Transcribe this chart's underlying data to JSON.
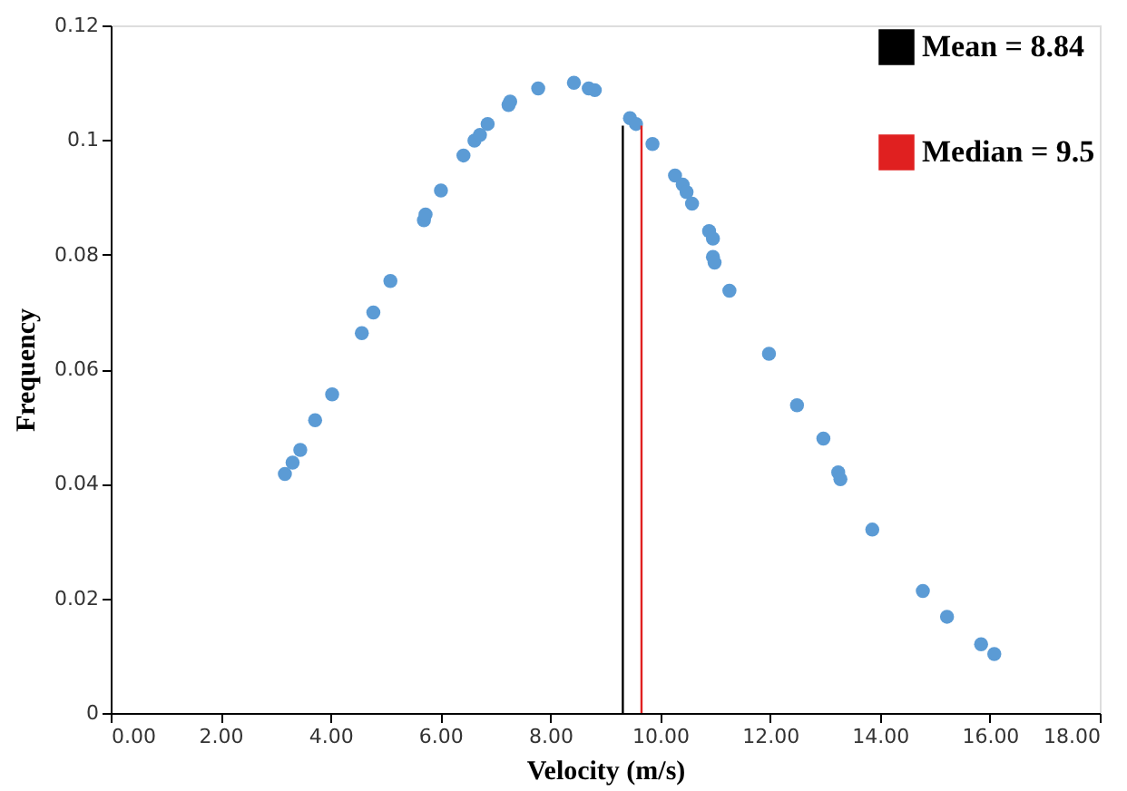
{
  "chart_data": {
    "type": "scatter",
    "xlabel": "Velocity (m/s)",
    "ylabel": "Frequency",
    "xlim": [
      0,
      18
    ],
    "ylim": [
      0,
      0.12
    ],
    "xticks": [
      {
        "value": 0,
        "label": "0.00"
      },
      {
        "value": 2,
        "label": "2.00"
      },
      {
        "value": 4,
        "label": "4.00"
      },
      {
        "value": 6,
        "label": "6.00"
      },
      {
        "value": 8,
        "label": "8.00"
      },
      {
        "value": 10,
        "label": "10.00"
      },
      {
        "value": 12,
        "label": "12.00"
      },
      {
        "value": 14,
        "label": "14.00"
      },
      {
        "value": 16,
        "label": "16.00"
      },
      {
        "value": 18,
        "label": "18.00"
      }
    ],
    "yticks": [
      0,
      0.02,
      0.04,
      0.06,
      0.08,
      0.1,
      0.12
    ],
    "grid": false,
    "legend": "top right",
    "series": [
      {
        "color": "#5b9bd5",
        "marker": "circle",
        "x": [
          3.17,
          3.31,
          3.45,
          3.72,
          4.03,
          4.57,
          4.78,
          5.09,
          5.7,
          5.73,
          6.01,
          6.42,
          6.62,
          6.72,
          6.86,
          7.24,
          7.27,
          7.78,
          8.43,
          8.7,
          8.81,
          9.45,
          9.56,
          9.86,
          10.27,
          10.41,
          10.48,
          10.58,
          10.89,
          10.96,
          10.96,
          10.99,
          11.26,
          11.98,
          12.49,
          12.97,
          13.24,
          13.28,
          13.86,
          14.78,
          15.22,
          15.84,
          16.08
        ],
        "values": [
          0.0417,
          0.0437,
          0.0459,
          0.0511,
          0.0556,
          0.0663,
          0.0699,
          0.0754,
          0.086,
          0.087,
          0.0912,
          0.0973,
          0.0999,
          0.1009,
          0.1028,
          0.1061,
          0.1067,
          0.109,
          0.11,
          0.109,
          0.1087,
          0.1038,
          0.1028,
          0.0993,
          0.0938,
          0.0922,
          0.0909,
          0.0889,
          0.0841,
          0.0828,
          0.0796,
          0.0786,
          0.0737,
          0.0627,
          0.0537,
          0.0479,
          0.042,
          0.0408,
          0.032,
          0.0213,
          0.0168,
          0.012,
          0.0103
        ]
      },
      {
        "type": "line",
        "name": "Mean = 8.84",
        "color": "#000000",
        "marker": "none",
        "x": [
          9.32,
          9.32
        ],
        "values": [
          0,
          0.1025
        ]
      },
      {
        "type": "line",
        "name": "Median = 9.5",
        "color": "#e02020",
        "marker": "none",
        "x": [
          9.66,
          9.66
        ],
        "values": [
          0,
          0.1025
        ]
      }
    ]
  }
}
